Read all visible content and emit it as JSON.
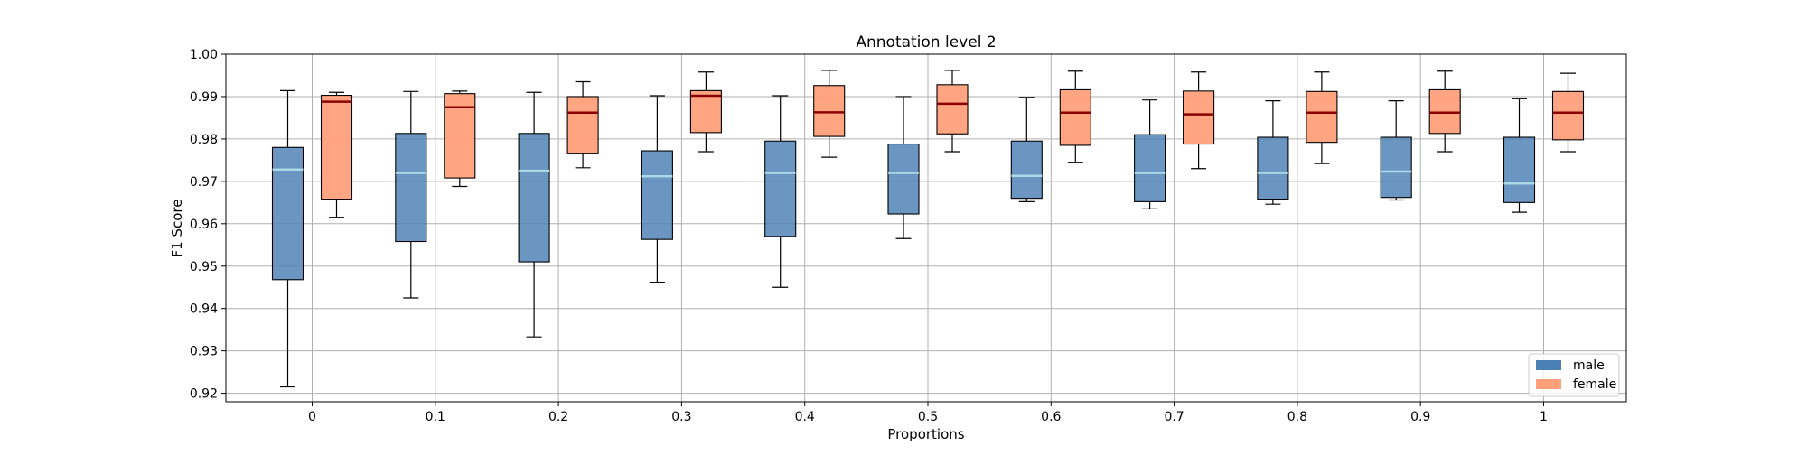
{
  "chart_data": {
    "type": "box",
    "title": "Annotation level 2",
    "xlabel": "Proportions",
    "ylabel": "F1 Score",
    "categories": [
      "0",
      "0.1",
      "0.2",
      "0.3",
      "0.4",
      "0.5",
      "0.6",
      "0.7",
      "0.8",
      "0.9",
      "1"
    ],
    "ylim": [
      0.918,
      1.0
    ],
    "yticks": [
      "0.92",
      "0.93",
      "0.94",
      "0.95",
      "0.96",
      "0.97",
      "0.98",
      "0.99",
      "1.00"
    ],
    "grid": true,
    "legend_position": "bottom-right",
    "series": [
      {
        "name": "male",
        "color": "#4a7fb5",
        "median_color": "#add8e6",
        "boxes": [
          {
            "whislo": 0.9215,
            "q1": 0.9468,
            "med": 0.9728,
            "q3": 0.978,
            "whishi": 0.9914
          },
          {
            "whislo": 0.9425,
            "q1": 0.9558,
            "med": 0.972,
            "q3": 0.9813,
            "whishi": 0.9912
          },
          {
            "whislo": 0.9333,
            "q1": 0.951,
            "med": 0.9725,
            "q3": 0.9813,
            "whishi": 0.991
          },
          {
            "whislo": 0.9462,
            "q1": 0.9563,
            "med": 0.9712,
            "q3": 0.9772,
            "whishi": 0.9902
          },
          {
            "whislo": 0.945,
            "q1": 0.957,
            "med": 0.972,
            "q3": 0.9795,
            "whishi": 0.9902
          },
          {
            "whislo": 0.9565,
            "q1": 0.9623,
            "med": 0.972,
            "q3": 0.9788,
            "whishi": 0.99
          },
          {
            "whislo": 0.9652,
            "q1": 0.966,
            "med": 0.9713,
            "q3": 0.9795,
            "whishi": 0.9898
          },
          {
            "whislo": 0.9635,
            "q1": 0.9652,
            "med": 0.972,
            "q3": 0.981,
            "whishi": 0.9892
          },
          {
            "whislo": 0.9646,
            "q1": 0.9658,
            "med": 0.972,
            "q3": 0.9804,
            "whishi": 0.989
          },
          {
            "whislo": 0.9656,
            "q1": 0.9662,
            "med": 0.9723,
            "q3": 0.9804,
            "whishi": 0.989
          },
          {
            "whislo": 0.9627,
            "q1": 0.965,
            "med": 0.9695,
            "q3": 0.9804,
            "whishi": 0.9895
          }
        ]
      },
      {
        "name": "female",
        "color": "#ffa07a",
        "median_color": "#8b0000",
        "boxes": [
          {
            "whislo": 0.9615,
            "q1": 0.9658,
            "med": 0.9888,
            "q3": 0.9903,
            "whishi": 0.991
          },
          {
            "whislo": 0.9688,
            "q1": 0.9708,
            "med": 0.9875,
            "q3": 0.9907,
            "whishi": 0.9913
          },
          {
            "whislo": 0.9732,
            "q1": 0.9765,
            "med": 0.9862,
            "q3": 0.99,
            "whishi": 0.9935
          },
          {
            "whislo": 0.977,
            "q1": 0.9815,
            "med": 0.9902,
            "q3": 0.9914,
            "whishi": 0.9958
          },
          {
            "whislo": 0.9757,
            "q1": 0.9806,
            "med": 0.9863,
            "q3": 0.9926,
            "whishi": 0.9962
          },
          {
            "whislo": 0.977,
            "q1": 0.9812,
            "med": 0.9883,
            "q3": 0.9928,
            "whishi": 0.9962
          },
          {
            "whislo": 0.9745,
            "q1": 0.9785,
            "med": 0.9862,
            "q3": 0.9916,
            "whishi": 0.996
          },
          {
            "whislo": 0.973,
            "q1": 0.9788,
            "med": 0.9858,
            "q3": 0.9913,
            "whishi": 0.9958
          },
          {
            "whislo": 0.9742,
            "q1": 0.9792,
            "med": 0.9862,
            "q3": 0.9912,
            "whishi": 0.9958
          },
          {
            "whislo": 0.977,
            "q1": 0.9813,
            "med": 0.9862,
            "q3": 0.9916,
            "whishi": 0.996
          },
          {
            "whislo": 0.977,
            "q1": 0.9798,
            "med": 0.9862,
            "q3": 0.9912,
            "whishi": 0.9955
          }
        ]
      }
    ]
  }
}
